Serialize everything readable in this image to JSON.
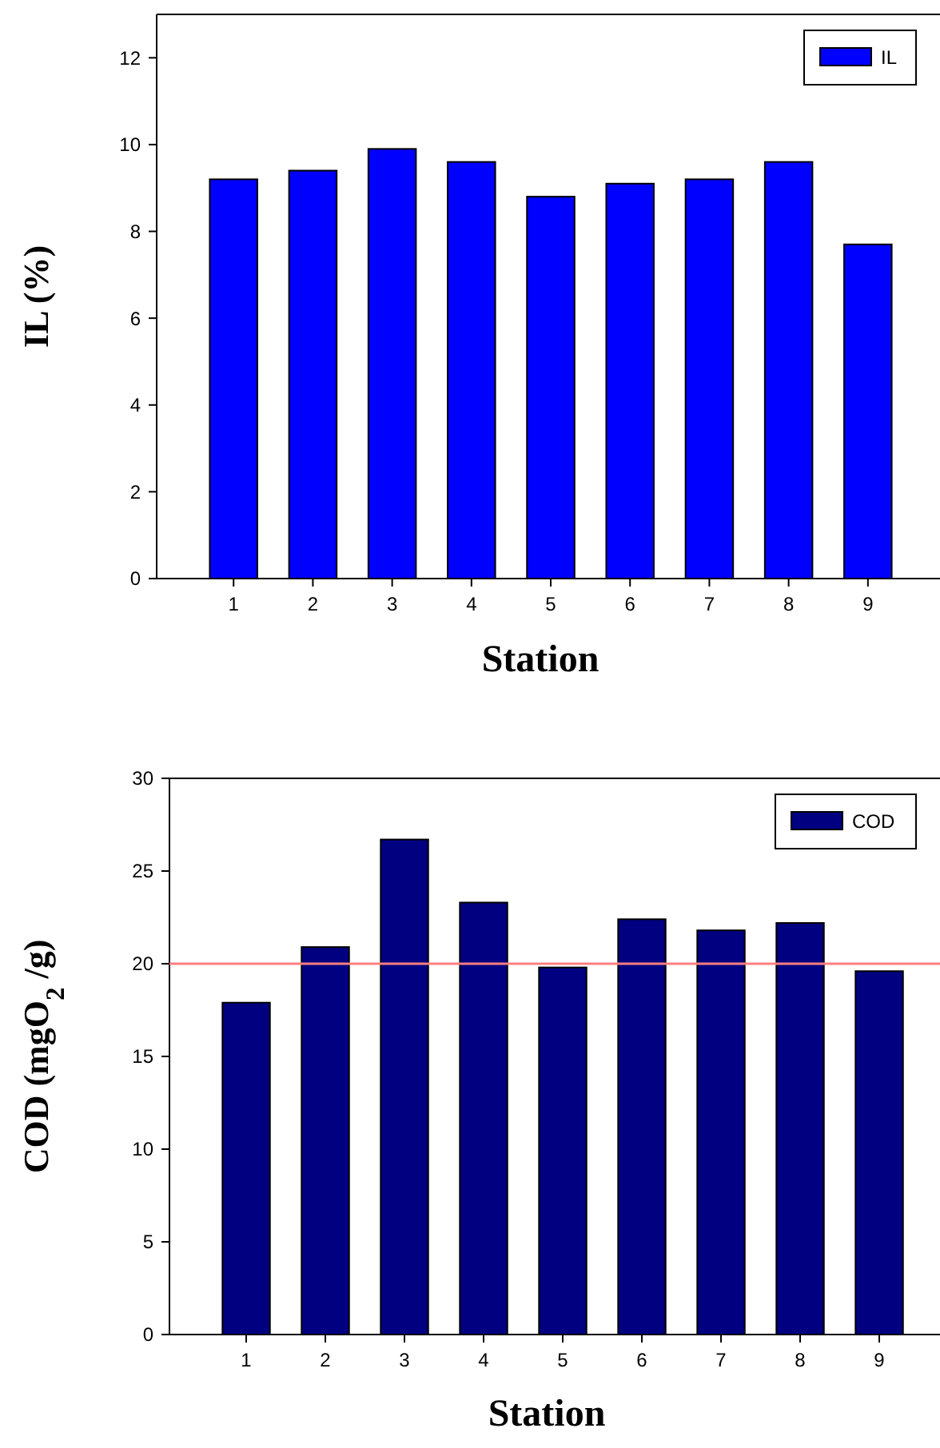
{
  "chart_data": [
    {
      "type": "bar",
      "xlabel": "Station",
      "ylabel": "IL (%)",
      "categories": [
        "1",
        "2",
        "3",
        "4",
        "5",
        "6",
        "7",
        "8",
        "9"
      ],
      "series": [
        {
          "name": "IL",
          "color": "#0000ff",
          "values": [
            9.2,
            9.4,
            9.9,
            9.6,
            8.8,
            9.1,
            9.2,
            9.6,
            7.7
          ]
        }
      ],
      "ylim": [
        0,
        13
      ],
      "yticks": [
        0,
        2,
        4,
        6,
        8,
        10,
        12
      ],
      "legend": "top right"
    },
    {
      "type": "bar",
      "xlabel": "Station",
      "ylabel": "COD (mgO$_{2}$ /g)",
      "categories": [
        "1",
        "2",
        "3",
        "4",
        "5",
        "6",
        "7",
        "8",
        "9"
      ],
      "series": [
        {
          "name": "COD",
          "color": "#000080",
          "values": [
            17.9,
            20.9,
            26.7,
            23.3,
            19.8,
            22.4,
            21.8,
            22.2,
            19.6
          ]
        }
      ],
      "ylim": [
        0,
        30
      ],
      "yticks": [
        0,
        5,
        10,
        15,
        20,
        25,
        30
      ],
      "legend": "top right",
      "ref_lines": [
        {
          "axis": "y",
          "value": 20,
          "color": "#ff8080"
        }
      ]
    }
  ]
}
